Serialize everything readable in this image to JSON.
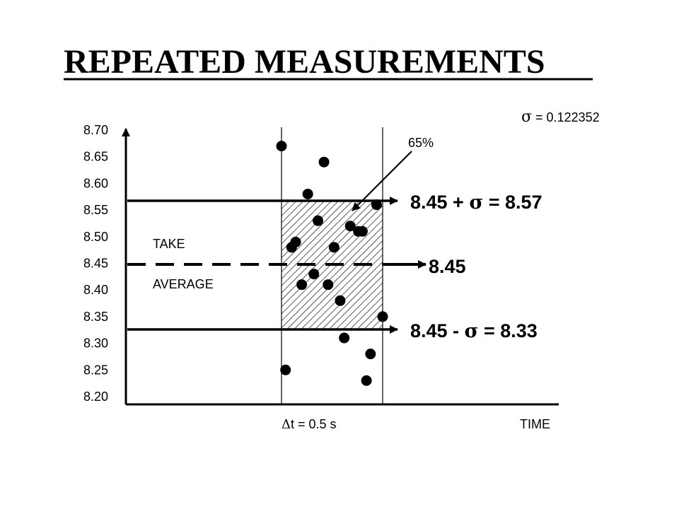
{
  "title": "REPEATED MEASUREMENTS",
  "sigma_label": {
    "symbol": "σ",
    "text": " = 0.122352"
  },
  "percent_label": "65%",
  "take_label": "TAKE",
  "average_label": "AVERAGE",
  "dt_label": {
    "symbol": "Δ",
    "text": "t = 0.5 s"
  },
  "time_label": "TIME",
  "upper_label": {
    "pre": "8.45 + ",
    "symbol": "σ",
    "post": " = 8.57"
  },
  "mean_label": "8.45",
  "lower_label": {
    "pre": "8.45 - ",
    "symbol": "σ",
    "post": " = 8.33"
  },
  "chart_data": {
    "type": "scatter",
    "title": "REPEATED MEASUREMENTS",
    "xlabel": "TIME",
    "ylabel": "",
    "ylim": [
      8.2,
      8.7
    ],
    "y_ticks": [
      "8.70",
      "8.65",
      "8.60",
      "8.55",
      "8.50",
      "8.45",
      "8.40",
      "8.35",
      "8.30",
      "8.25",
      "8.20"
    ],
    "interval_seconds": 0.5,
    "mean": 8.45,
    "sigma": 0.122352,
    "upper": 8.57,
    "lower": 8.33,
    "points": [
      {
        "t": 0.0,
        "y": 8.67
      },
      {
        "t": 0.21,
        "y": 8.64
      },
      {
        "t": 0.13,
        "y": 8.58
      },
      {
        "t": 0.47,
        "y": 8.56
      },
      {
        "t": 0.18,
        "y": 8.53
      },
      {
        "t": 0.34,
        "y": 8.52
      },
      {
        "t": 0.38,
        "y": 8.51
      },
      {
        "t": 0.4,
        "y": 8.51
      },
      {
        "t": 0.07,
        "y": 8.49
      },
      {
        "t": 0.05,
        "y": 8.48
      },
      {
        "t": 0.26,
        "y": 8.48
      },
      {
        "t": 0.16,
        "y": 8.43
      },
      {
        "t": 0.1,
        "y": 8.41
      },
      {
        "t": 0.23,
        "y": 8.41
      },
      {
        "t": 0.29,
        "y": 8.38
      },
      {
        "t": 0.5,
        "y": 8.35
      },
      {
        "t": 0.31,
        "y": 8.31
      },
      {
        "t": 0.44,
        "y": 8.28
      },
      {
        "t": 0.02,
        "y": 8.25
      },
      {
        "t": 0.42,
        "y": 8.23
      }
    ]
  }
}
